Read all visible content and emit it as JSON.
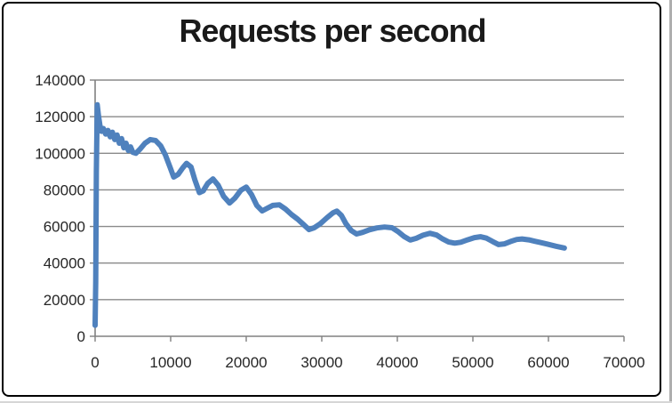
{
  "window": {
    "background": "#ffffff",
    "frame_border_color": "#000000"
  },
  "chart_data": {
    "type": "line",
    "title": "Requests per second",
    "xlabel": "",
    "ylabel": "",
    "xlim": [
      0,
      70000
    ],
    "ylim": [
      0,
      140000
    ],
    "x_ticks": [
      0,
      10000,
      20000,
      30000,
      40000,
      50000,
      60000,
      70000
    ],
    "x_tick_labels": [
      "0",
      "10000",
      "20000",
      "30000",
      "40000",
      "50000",
      "60000",
      "70000"
    ],
    "y_ticks": [
      0,
      20000,
      40000,
      60000,
      80000,
      100000,
      120000,
      140000
    ],
    "y_tick_labels": [
      "0",
      "20000",
      "40000",
      "60000",
      "80000",
      "100000",
      "120000",
      "140000"
    ],
    "grid": "horizontal",
    "legend": "none",
    "colors": {
      "series": "#4F81BD",
      "gridline": "#8a8a8a",
      "axis": "#808080",
      "tick_label": "#262626",
      "title": "#1a1a1a"
    },
    "series": [
      {
        "name": "Requests per second",
        "color": "#4F81BD",
        "points": [
          [
            0,
            6000
          ],
          [
            80,
            30000
          ],
          [
            160,
            90000
          ],
          [
            280,
            126500
          ],
          [
            450,
            120500
          ],
          [
            650,
            115000
          ],
          [
            850,
            112000
          ],
          [
            1100,
            113500
          ],
          [
            1400,
            110500
          ],
          [
            1700,
            112500
          ],
          [
            2000,
            109000
          ],
          [
            2300,
            111500
          ],
          [
            2600,
            107500
          ],
          [
            2900,
            110000
          ],
          [
            3200,
            105500
          ],
          [
            3500,
            108000
          ],
          [
            3800,
            103000
          ],
          [
            4100,
            105500
          ],
          [
            4400,
            101500
          ],
          [
            4700,
            103500
          ],
          [
            5000,
            100500
          ],
          [
            5400,
            100000
          ],
          [
            6000,
            102500
          ],
          [
            6600,
            105500
          ],
          [
            7300,
            107500
          ],
          [
            8000,
            107000
          ],
          [
            8700,
            104000
          ],
          [
            9300,
            99000
          ],
          [
            9900,
            92500
          ],
          [
            10400,
            87000
          ],
          [
            11000,
            88500
          ],
          [
            11600,
            92000
          ],
          [
            12100,
            94500
          ],
          [
            12700,
            92500
          ],
          [
            13200,
            85500
          ],
          [
            13800,
            78500
          ],
          [
            14300,
            79500
          ],
          [
            14900,
            83500
          ],
          [
            15600,
            86000
          ],
          [
            16300,
            82500
          ],
          [
            17000,
            76500
          ],
          [
            17800,
            72800
          ],
          [
            18500,
            75500
          ],
          [
            19300,
            79800
          ],
          [
            20000,
            81500
          ],
          [
            20700,
            77500
          ],
          [
            21400,
            71500
          ],
          [
            22100,
            68500
          ],
          [
            22800,
            70000
          ],
          [
            23500,
            71500
          ],
          [
            24400,
            71800
          ],
          [
            25200,
            69500
          ],
          [
            26000,
            66500
          ],
          [
            26800,
            64000
          ],
          [
            27600,
            61000
          ],
          [
            28300,
            58300
          ],
          [
            29000,
            59300
          ],
          [
            29800,
            61500
          ],
          [
            30700,
            64800
          ],
          [
            31500,
            67500
          ],
          [
            32000,
            68400
          ],
          [
            32600,
            66000
          ],
          [
            33200,
            61500
          ],
          [
            33900,
            57800
          ],
          [
            34600,
            55900
          ],
          [
            35400,
            56800
          ],
          [
            36300,
            58200
          ],
          [
            37300,
            59200
          ],
          [
            38300,
            59700
          ],
          [
            39300,
            59300
          ],
          [
            40100,
            57200
          ],
          [
            40900,
            54500
          ],
          [
            41700,
            52600
          ],
          [
            42500,
            53500
          ],
          [
            43400,
            55200
          ],
          [
            44300,
            56300
          ],
          [
            45200,
            55300
          ],
          [
            46000,
            53200
          ],
          [
            46800,
            51500
          ],
          [
            47600,
            50900
          ],
          [
            48400,
            51400
          ],
          [
            49300,
            52700
          ],
          [
            50200,
            53900
          ],
          [
            51000,
            54400
          ],
          [
            51800,
            53600
          ],
          [
            52600,
            51800
          ],
          [
            53400,
            50100
          ],
          [
            54200,
            50500
          ],
          [
            55000,
            51800
          ],
          [
            55800,
            52900
          ],
          [
            56500,
            53200
          ],
          [
            57400,
            52700
          ],
          [
            58200,
            51900
          ],
          [
            59000,
            51200
          ],
          [
            60000,
            50200
          ],
          [
            61000,
            49200
          ],
          [
            62100,
            48200
          ]
        ]
      }
    ]
  }
}
